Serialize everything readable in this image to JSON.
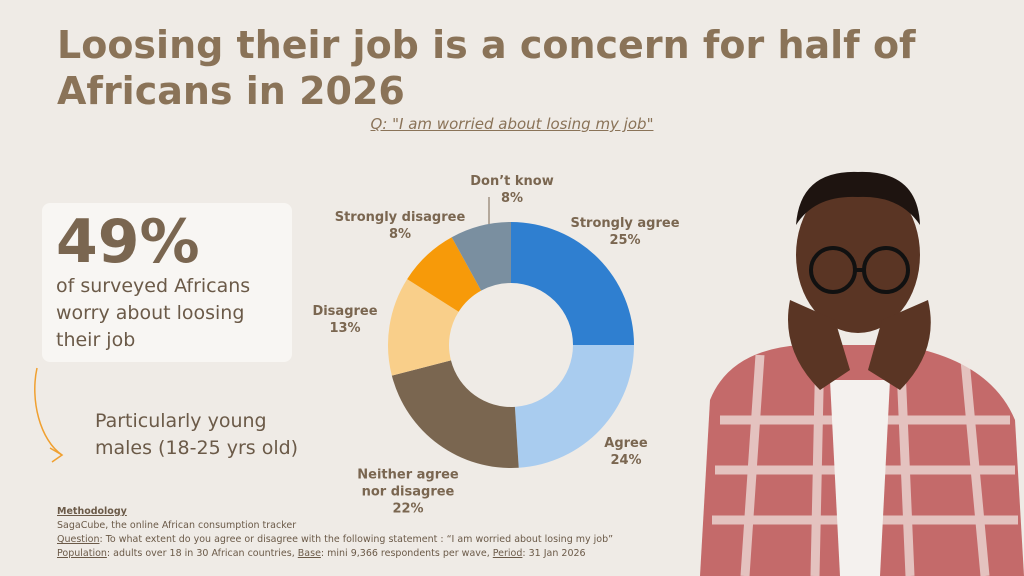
{
  "chart_data": {
    "type": "pie",
    "title": "Loosing their job is a concern for half of Africans in 2026",
    "subtitle": "Q: \"I am worried about losing my job\"",
    "categories": [
      "Strongly agree",
      "Agree",
      "Neither agree nor disagree",
      "Disagree",
      "Strongly disagree",
      "Don’t know"
    ],
    "values": [
      25,
      24,
      22,
      13,
      8,
      8
    ],
    "value_labels": [
      "25%",
      "24%",
      "22%",
      "13%",
      "8%",
      "8%"
    ],
    "colors": [
      "#2f7fd0",
      "#a9ccef",
      "#7a6650",
      "#f9cf8a",
      "#f79a09",
      "#7a8fa0"
    ]
  },
  "stat": {
    "value": "49%",
    "text": "of surveyed Africans worry about loosing their job"
  },
  "callout": "Particularly young males (18-25 yrs old)",
  "methodology": {
    "heading": "Methodology",
    "lines": [
      [
        {
          "text": "SagaCube, the online African consumption tracker",
          "underline": false
        }
      ],
      [
        {
          "text": "Question",
          "underline": true
        },
        {
          "text": ": To what extent do you agree or disagree with the following statement : “I am worried about losing my job”",
          "underline": false
        }
      ],
      [
        {
          "text": "Population",
          "underline": true
        },
        {
          "text": ": adults over 18 in 30 African countries, ",
          "underline": false
        },
        {
          "text": "Base",
          "underline": true
        },
        {
          "text": ": mini 9,366 respondents per wave, ",
          "underline": false
        },
        {
          "text": "Period",
          "underline": true
        },
        {
          "text": ": 31 Jan 2026",
          "underline": false
        }
      ]
    ]
  }
}
